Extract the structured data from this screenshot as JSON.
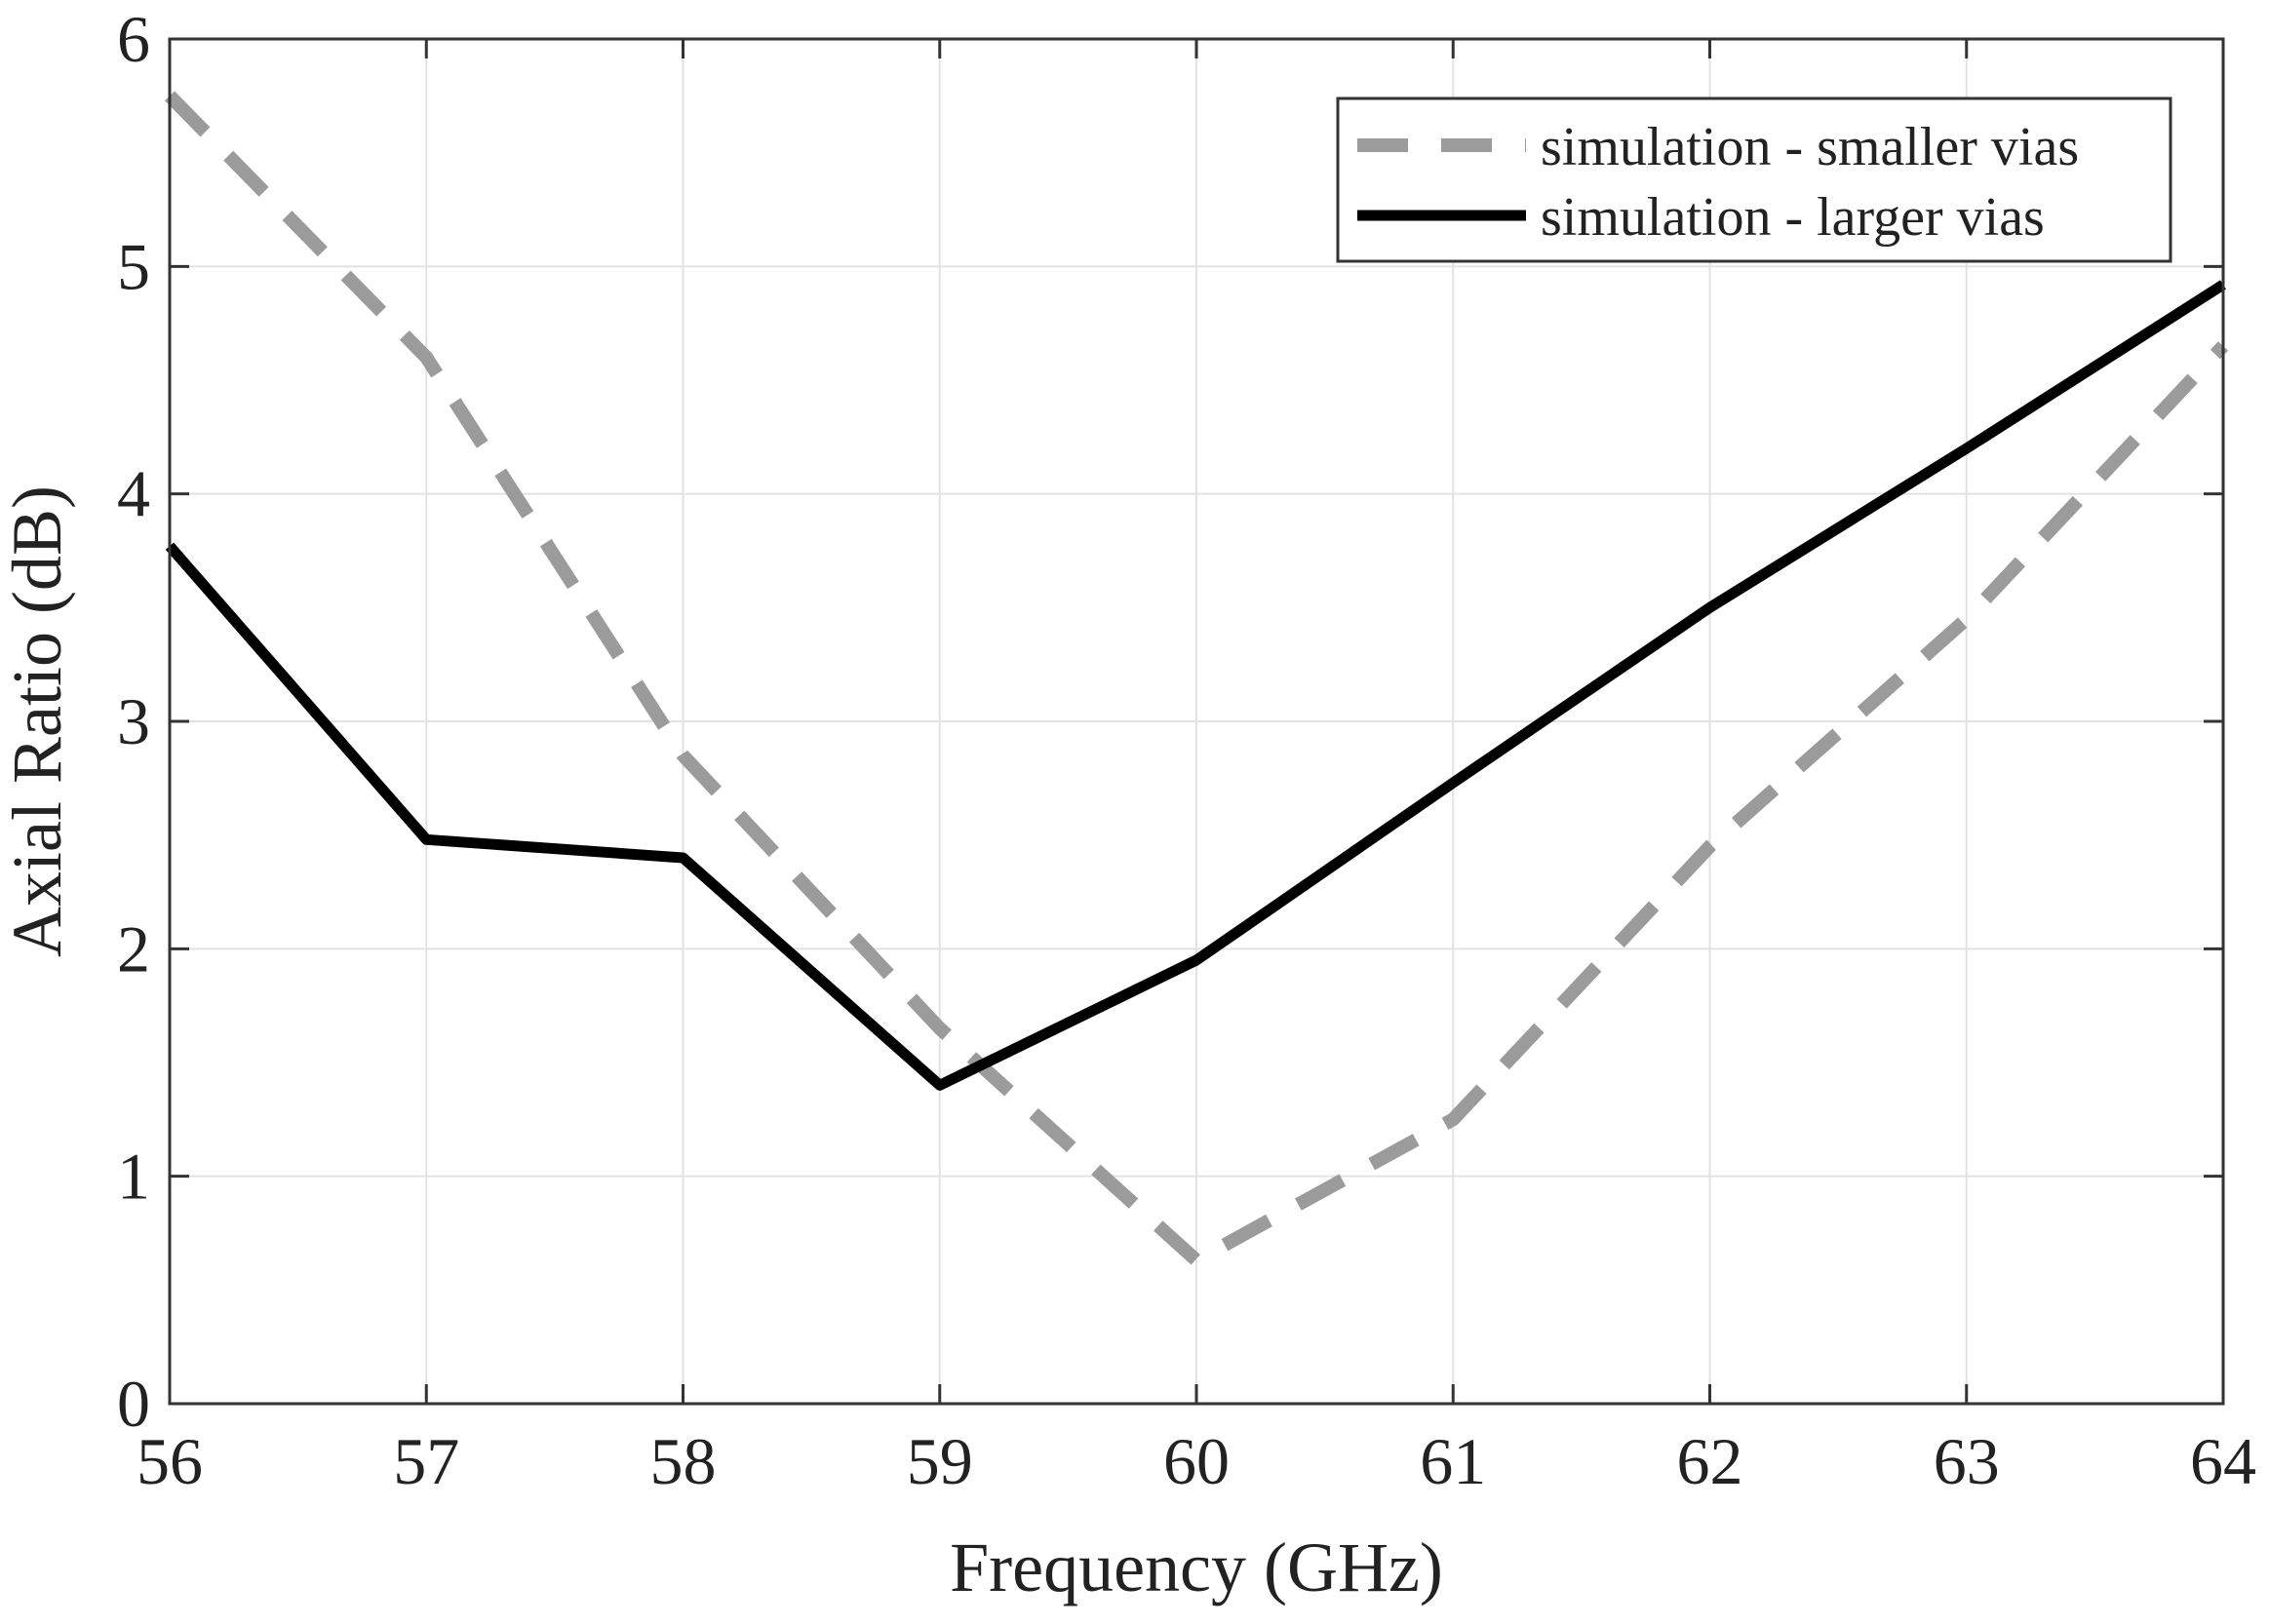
{
  "chart_data": {
    "type": "line",
    "title": "",
    "xlabel": "Frequency (GHz)",
    "ylabel": "Axial Ratio (dB)",
    "xlim": [
      56,
      64
    ],
    "ylim": [
      0,
      6
    ],
    "xticks": [
      56,
      57,
      58,
      59,
      60,
      61,
      62,
      63,
      64
    ],
    "yticks": [
      0,
      1,
      2,
      3,
      4,
      5,
      6
    ],
    "grid": true,
    "legend_position": "top-right",
    "series": [
      {
        "name": "simulation - smaller vias",
        "style": "dashed",
        "color": "#9b9b9b",
        "x": [
          56,
          57,
          58,
          59,
          60,
          61,
          62,
          63,
          64
        ],
        "y": [
          5.75,
          4.6,
          2.85,
          1.65,
          0.63,
          1.25,
          2.45,
          3.45,
          4.65
        ]
      },
      {
        "name": "simulation - larger vias",
        "style": "solid",
        "color": "#000000",
        "x": [
          56,
          57,
          58,
          59,
          60,
          61,
          62,
          63,
          64
        ],
        "y": [
          3.77,
          2.48,
          2.4,
          1.4,
          1.95,
          2.73,
          3.5,
          4.2,
          4.92
        ]
      }
    ]
  }
}
